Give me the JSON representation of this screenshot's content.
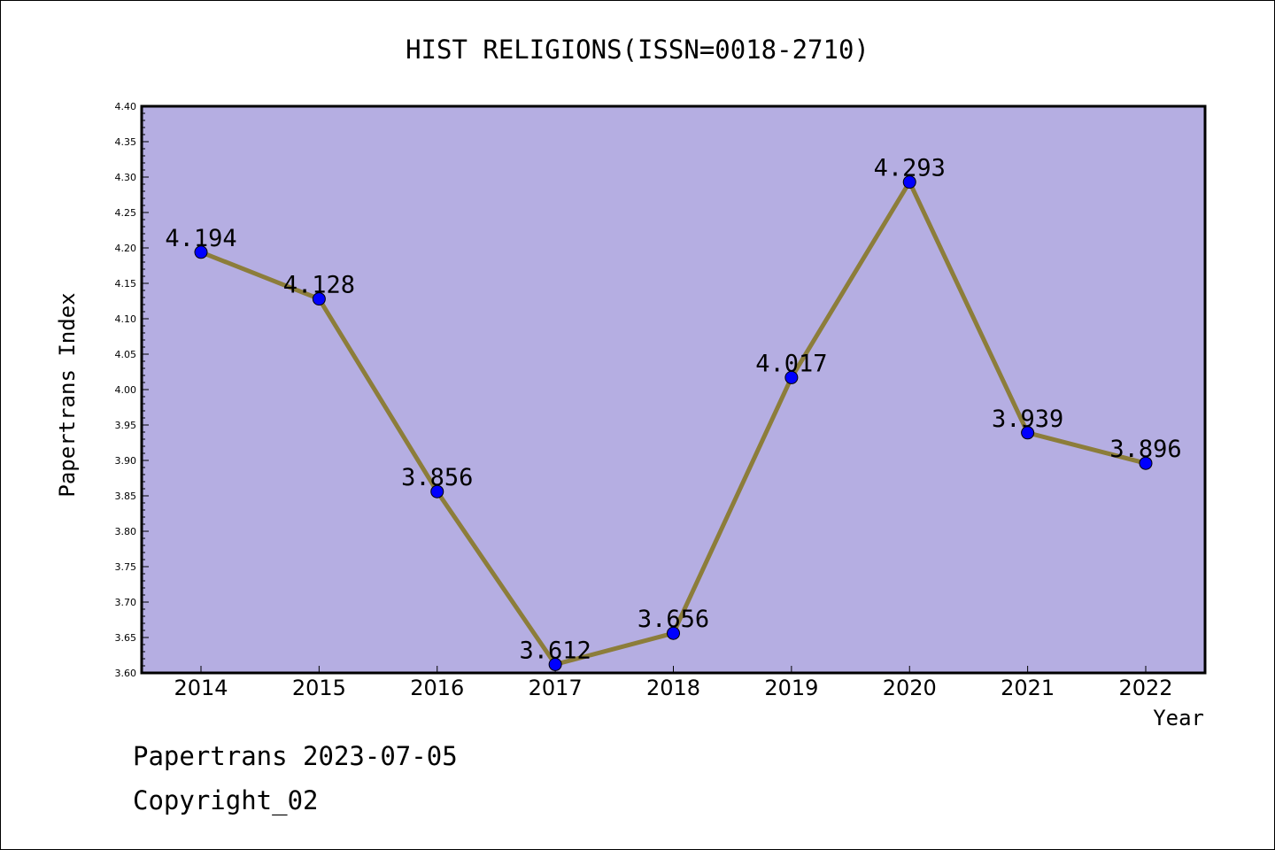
{
  "chart_data": {
    "type": "line",
    "title": "HIST RELIGIONS(ISSN=0018-2710)",
    "xlabel": "Year",
    "ylabel": "Papertrans Index",
    "x": [
      "2014",
      "2015",
      "2016",
      "2017",
      "2018",
      "2019",
      "2020",
      "2021",
      "2022"
    ],
    "series": [
      {
        "values": [
          4.194,
          4.128,
          3.856,
          3.612,
          3.656,
          4.017,
          4.293,
          3.939,
          3.896
        ],
        "labels": [
          "4.194",
          "4.128",
          "3.856",
          "3.612",
          "3.656",
          "4.017",
          "4.293",
          "3.939",
          "3.896"
        ]
      }
    ],
    "ylim": [
      3.6,
      4.4
    ],
    "yticks": [
      "3.60",
      "3.65",
      "3.70",
      "3.75",
      "3.80",
      "3.85",
      "3.90",
      "3.95",
      "4.00",
      "4.05",
      "4.10",
      "4.15",
      "4.20",
      "4.25",
      "4.30",
      "4.35",
      "4.40"
    ],
    "grid": false,
    "colors": {
      "plot_background": "#b5aee2",
      "line": "#8c7d3a",
      "marker": "#0000ff"
    }
  },
  "footer": {
    "line1": "Papertrans 2023-07-05",
    "line2": "Copyright_02"
  }
}
